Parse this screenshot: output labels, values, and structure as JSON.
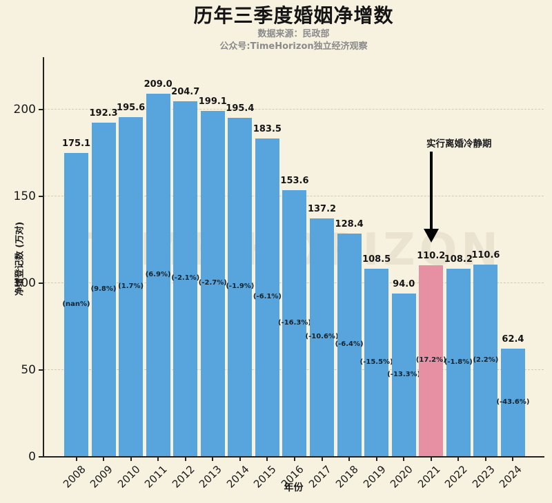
{
  "header": {
    "title": "历年三季度婚姻净增数",
    "subtitle1": "数据来源：民政部",
    "subtitle2": "公众号:TimeHorizon独立经济观察"
  },
  "watermark": "TIME HORIZON",
  "annotation": {
    "label": "实行离婚冷静期",
    "target_year": "2021"
  },
  "colors": {
    "background": "#f7f1df",
    "bar": "#57a5dc",
    "highlight": "#e78fa3",
    "axis": "#222222",
    "subtitle_gray": "#8b8b8b"
  },
  "chart_data": {
    "type": "bar",
    "title": "历年三季度婚姻净增数",
    "xlabel": "年份",
    "ylabel": "净增登记数 (万对)",
    "categories": [
      "2008",
      "2009",
      "2010",
      "2011",
      "2012",
      "2013",
      "2014",
      "2015",
      "2016",
      "2017",
      "2018",
      "2019",
      "2020",
      "2021",
      "2022",
      "2023",
      "2024"
    ],
    "values": [
      175.1,
      192.3,
      195.6,
      209.0,
      204.7,
      199.1,
      195.4,
      183.5,
      153.6,
      137.2,
      128.4,
      108.5,
      94.0,
      110.2,
      108.2,
      110.6,
      62.4
    ],
    "pct_labels": [
      "(nan%)",
      "(9.8%)",
      "(1.7%)",
      "(6.9%)",
      "(-2.1%)",
      "(-2.7%)",
      "(-1.9%)",
      "(-6.1%)",
      "(-16.3%)",
      "(-10.6%)",
      "(-6.4%)",
      "(-15.5%)",
      "(-13.3%)",
      "(17.2%)",
      "(-1.8%)",
      "(2.2%)",
      "(-43.6%)"
    ],
    "highlight_index": 13,
    "bar_color": "#57a5dc",
    "highlight_color": "#e78fa3",
    "yticks": [
      0,
      50,
      100,
      150,
      200
    ],
    "ylim": [
      0,
      230
    ],
    "grid": true,
    "legend": null
  }
}
